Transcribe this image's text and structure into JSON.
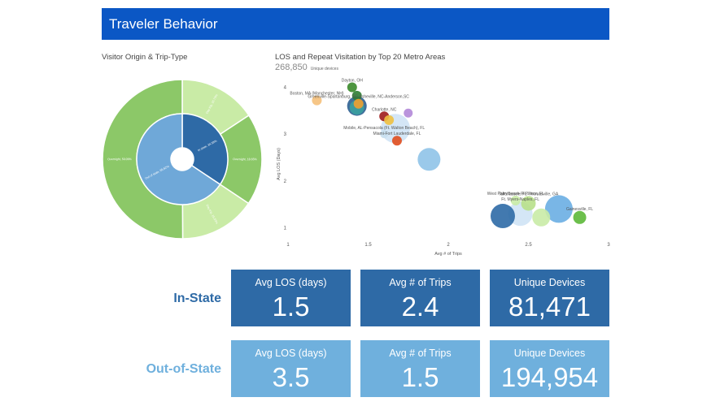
{
  "header": {
    "title": "Traveler Behavior"
  },
  "sunburst": {
    "title": "Visitor Origin & Trip-Type",
    "inner": [
      {
        "label": "In state, 34.38%",
        "value": 34.38,
        "color": "#2e6aa6"
      },
      {
        "label": "Out of state, 65.62%",
        "value": 65.62,
        "color": "#6fa8d8"
      }
    ],
    "outer": [
      {
        "label": "Day trip, 15.73%",
        "value": 15.73,
        "color": "#c9eba6"
      },
      {
        "label": "Overnight, 18.65%",
        "value": 18.65,
        "color": "#8cc868"
      },
      {
        "label": "Day trip, 15.53%",
        "value": 15.53,
        "color": "#c9eba6"
      },
      {
        "label": "Overnight, 50.09%",
        "value": 50.09,
        "color": "#8cc868"
      }
    ]
  },
  "scatter": {
    "title": "LOS and Repeat Visitation by Top 20 Metro Areas",
    "subtitle_value": "268,850",
    "subtitle_unit": "Unique devices",
    "xlabel": "Avg # of Trips",
    "ylabel": "Avg LOS (Days)"
  },
  "chart_data": {
    "type": "scatter",
    "title": "LOS and Repeat Visitation by Top 20 Metro Areas",
    "xlabel": "Avg # of Trips",
    "ylabel": "Avg LOS (Days)",
    "xlim": [
      1,
      3
    ],
    "ylim": [
      0.8,
      4.2
    ],
    "xticks": [
      "1",
      "1.5",
      "2",
      "2.5",
      "3"
    ],
    "yticks": [
      "1",
      "2",
      "3",
      "4"
    ],
    "points": [
      {
        "label": "Dayton, OH",
        "x": 1.4,
        "y": 4.0,
        "size": 6,
        "color": "#3a8a2a"
      },
      {
        "label": "Boston, MA (Manchester, NH)",
        "x": 1.18,
        "y": 3.72,
        "size": 6,
        "color": "#f5c07a"
      },
      {
        "label": "",
        "x": 1.43,
        "y": 3.82,
        "size": 6,
        "color": "#2e7d32"
      },
      {
        "label": "",
        "x": 1.43,
        "y": 3.6,
        "size": 12,
        "color": "#2c5f91"
      },
      {
        "label": "",
        "x": 1.43,
        "y": 3.57,
        "size": 9,
        "color": "#3aa0a0"
      },
      {
        "label": "Greenville-Spartanburg, SC-Asheville, NC-Anderson,SC",
        "x": 1.44,
        "y": 3.65,
        "size": 6,
        "color": "#f0a030"
      },
      {
        "label": "Charlotte, NC",
        "x": 1.6,
        "y": 3.38,
        "size": 6,
        "color": "#9e1b1b"
      },
      {
        "label": "",
        "x": 1.63,
        "y": 3.3,
        "size": 6,
        "color": "#f0c040"
      },
      {
        "label": "",
        "x": 1.75,
        "y": 3.45,
        "size": 5.5,
        "color": "#b388d8"
      },
      {
        "label": "",
        "x": 1.67,
        "y": 3.12,
        "size": 18,
        "color": "#cfe3f5"
      },
      {
        "label": "Mobile, AL-Pensacola (Ft. Walton Beach), FL",
        "x": 1.6,
        "y": 3.0,
        "size": 5,
        "color": "#c8dff0"
      },
      {
        "label": "Miami-Fort Lauderdale, FL",
        "x": 1.68,
        "y": 2.86,
        "size": 6,
        "color": "#e04e1e"
      },
      {
        "label": "",
        "x": 1.88,
        "y": 2.46,
        "size": 14,
        "color": "#8fc3e8"
      },
      {
        "label": "West Palm Beach-Ft Pierce, FL",
        "x": 2.42,
        "y": 1.58,
        "size": 6,
        "color": "#c9eba6"
      },
      {
        "label": "Tallahassee, FL-Thomasville, GA",
        "x": 2.5,
        "y": 1.52,
        "size": 9,
        "color": "#b8e08a"
      },
      {
        "label": "Ft. Myers-Naples, FL",
        "x": 2.45,
        "y": 1.3,
        "size": 15,
        "color": "#cfe3f5"
      },
      {
        "label": "",
        "x": 2.34,
        "y": 1.25,
        "size": 15,
        "color": "#2e6aa6"
      },
      {
        "label": "",
        "x": 2.58,
        "y": 1.22,
        "size": 11,
        "color": "#c9eba6"
      },
      {
        "label": "",
        "x": 2.69,
        "y": 1.4,
        "size": 17,
        "color": "#6aaee3"
      },
      {
        "label": "Gainesville, FL",
        "x": 2.82,
        "y": 1.22,
        "size": 8,
        "color": "#5cb838"
      }
    ]
  },
  "rows": [
    {
      "label": "In-State",
      "color": "#2e6aa6",
      "cards": [
        {
          "label": "Avg LOS (days)",
          "value": "1.5"
        },
        {
          "label": "Avg # of Trips",
          "value": "2.4"
        },
        {
          "label": "Unique Devices",
          "value": "81,471"
        }
      ]
    },
    {
      "label": "Out-of-State",
      "color": "#6fb0dd",
      "cards": [
        {
          "label": "Avg LOS (days)",
          "value": "3.5"
        },
        {
          "label": "Avg # of Trips",
          "value": "1.5"
        },
        {
          "label": "Unique Devices",
          "value": "194,954"
        }
      ]
    }
  ]
}
